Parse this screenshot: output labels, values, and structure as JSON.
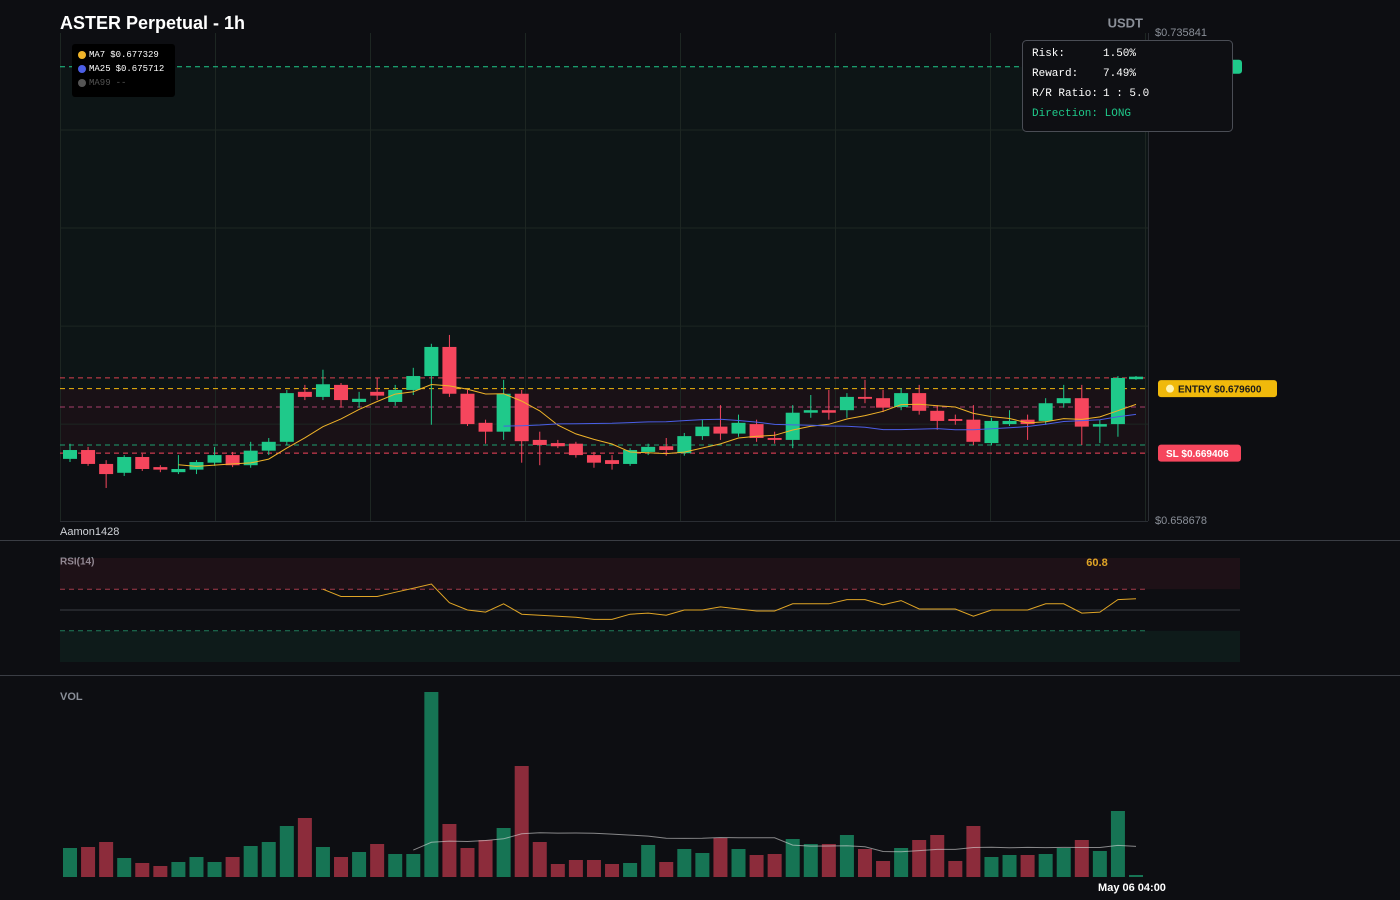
{
  "chart_data": {
    "type": "candlestick",
    "title": "ASTER Perpetual - 1h",
    "currency": "USDT",
    "watermark": "Aamon1428",
    "x": [
      null,
      null,
      null,
      null,
      null,
      null,
      null,
      null,
      null,
      null,
      null,
      null,
      null,
      null,
      null,
      null,
      null,
      null,
      null,
      null,
      null,
      null,
      null,
      null,
      null,
      null,
      null,
      null,
      null,
      null,
      null,
      null,
      null,
      null,
      null,
      null,
      null,
      null,
      null,
      null,
      null,
      null,
      null,
      null,
      null,
      null,
      null,
      null,
      null,
      null,
      null,
      null,
      null,
      null,
      null,
      null,
      null,
      null,
      null,
      "May 06 04:00"
    ],
    "open": [
      0.6685,
      0.6699,
      0.6677,
      0.6663,
      0.6688,
      0.6672,
      0.6664,
      0.6668,
      0.6679,
      0.6691,
      0.6675,
      0.6698,
      0.6712,
      0.6791,
      0.6783,
      0.6802,
      0.6775,
      0.6791,
      0.6775,
      0.6794,
      0.6816,
      0.6862,
      0.6788,
      0.6742,
      0.6728,
      0.6788,
      0.6715,
      0.671,
      0.6709,
      0.6691,
      0.6683,
      0.6677,
      0.6696,
      0.6705,
      0.6694,
      0.6721,
      0.6736,
      0.6725,
      0.674,
      0.6718,
      0.6715,
      0.6758,
      0.6762,
      0.6762,
      0.6783,
      0.6781,
      0.6767,
      0.6789,
      0.6761,
      0.6748,
      0.6747,
      0.671,
      0.674,
      0.6747,
      0.6745,
      0.6773,
      0.6781,
      0.6736,
      0.674,
      0.6811
    ],
    "high": [
      0.6709,
      0.6704,
      0.6683,
      0.6691,
      0.6693,
      0.6675,
      0.6691,
      0.6683,
      0.6704,
      0.6696,
      0.6712,
      0.6718,
      0.6794,
      0.6802,
      0.6826,
      0.6805,
      0.6791,
      0.6813,
      0.6802,
      0.6829,
      0.6867,
      0.6881,
      0.6794,
      0.6747,
      0.681,
      0.6794,
      0.6728,
      0.6715,
      0.6712,
      0.6696,
      0.6691,
      0.6702,
      0.6709,
      0.6718,
      0.6726,
      0.6747,
      0.677,
      0.6755,
      0.6747,
      0.6728,
      0.677,
      0.6786,
      0.6794,
      0.6789,
      0.681,
      0.6794,
      0.6797,
      0.6802,
      0.677,
      0.6755,
      0.677,
      0.675,
      0.6762,
      0.6755,
      0.6781,
      0.6802,
      0.6802,
      0.6747,
      0.6816,
      0.6816
    ],
    "low": [
      0.668,
      0.6674,
      0.6639,
      0.6658,
      0.6666,
      0.6664,
      0.6661,
      0.6661,
      0.6674,
      0.6672,
      0.6671,
      0.6691,
      0.6707,
      0.6778,
      0.6778,
      0.6766,
      0.6766,
      0.6778,
      0.6769,
      0.6786,
      0.6739,
      0.6783,
      0.6737,
      0.6709,
      0.6715,
      0.6679,
      0.6675,
      0.6702,
      0.6687,
      0.6671,
      0.6668,
      0.6674,
      0.6691,
      0.669,
      0.669,
      0.6715,
      0.6715,
      0.672,
      0.6712,
      0.6709,
      0.6702,
      0.675,
      0.6747,
      0.675,
      0.6773,
      0.6759,
      0.6762,
      0.6755,
      0.6731,
      0.6739,
      0.6707,
      0.6707,
      0.6737,
      0.6715,
      0.6739,
      0.6766,
      0.6707,
      0.671,
      0.672,
      0.681
    ],
    "close": [
      0.6699,
      0.6677,
      0.6661,
      0.6688,
      0.6669,
      0.6668,
      0.6669,
      0.668,
      0.6691,
      0.6675,
      0.6698,
      0.6712,
      0.6789,
      0.6783,
      0.6803,
      0.6778,
      0.678,
      0.6785,
      0.6794,
      0.6816,
      0.6862,
      0.6788,
      0.674,
      0.6728,
      0.6788,
      0.6713,
      0.6707,
      0.6705,
      0.6691,
      0.6679,
      0.6677,
      0.6699,
      0.6704,
      0.6699,
      0.6721,
      0.6736,
      0.6725,
      0.6742,
      0.6718,
      0.6715,
      0.6758,
      0.6762,
      0.6758,
      0.6783,
      0.678,
      0.6766,
      0.6789,
      0.6761,
      0.6745,
      0.6745,
      0.6712,
      0.6745,
      0.6745,
      0.674,
      0.6773,
      0.6781,
      0.6736,
      0.674,
      0.6813,
      0.6815
    ],
    "up_color": "#1fc98a",
    "down_color": "#f6465d",
    "ylim": [
      0.658678,
      0.735841
    ],
    "yticks": [
      {
        "value": 0.735841,
        "label": "$0.735841"
      },
      {
        "value": 0.658678,
        "label": "$0.658678"
      }
    ],
    "grid_y": [
      0.7205,
      0.705,
      0.6895,
      0.674
    ],
    "moving_averages": [
      {
        "name": "MA7",
        "period": 7,
        "color": "#f0b429",
        "value": 0.677329,
        "value_label": "$0.677329"
      },
      {
        "name": "MA25",
        "period": 25,
        "color": "#4b5ee6",
        "value": 0.675712,
        "value_label": "$0.675712"
      },
      {
        "name": "MA99",
        "period": 99,
        "color": "#555555",
        "value": null,
        "value_label": "--"
      }
    ],
    "levels": [
      {
        "label": "ENTRY $0.679600",
        "value": 0.6796,
        "color": "#f0b90b"
      },
      {
        "label": "SL $0.669406",
        "value": 0.669406,
        "color": "#f6465d"
      },
      {
        "value": 0.7305,
        "color": "#1fc98a"
      },
      {
        "value": 0.6813,
        "color": "#d9404f"
      },
      {
        "value": 0.6767,
        "color": "#a8406a"
      },
      {
        "value": 0.6707,
        "color": "#1f9e70"
      }
    ],
    "position": {
      "rows": [
        [
          "Risk:",
          "1.50%"
        ],
        [
          "Reward:",
          "7.49%"
        ],
        [
          "R/R Ratio:",
          "1 : 5.0"
        ]
      ],
      "direction": "Direction: LONG"
    },
    "rsi": {
      "label": "RSI(14)",
      "color": "#e0a526",
      "ylim": [
        0,
        100
      ],
      "levels": [
        30,
        50,
        70
      ],
      "values": [
        null,
        null,
        null,
        null,
        null,
        null,
        null,
        null,
        null,
        null,
        null,
        null,
        null,
        null,
        70,
        63,
        63,
        63,
        67,
        71,
        75,
        57,
        50,
        48,
        56,
        46,
        45,
        44,
        43,
        41,
        41,
        46,
        47,
        45,
        50,
        50,
        53,
        51,
        49,
        49,
        56,
        56,
        56,
        60,
        60,
        55,
        59,
        51,
        51,
        51,
        44,
        50,
        50,
        50,
        56,
        56,
        47,
        48,
        60,
        60.8
      ]
    },
    "volume": {
      "label": "VOL",
      "ma_period": 20,
      "values": [
        29,
        30,
        35,
        19,
        14,
        11,
        15,
        20,
        15,
        20,
        31,
        35,
        51,
        59,
        30,
        20,
        25,
        33,
        23,
        23,
        185,
        53,
        29,
        37,
        49,
        111,
        35,
        13,
        17,
        17,
        13,
        14,
        32,
        15,
        28,
        24,
        39,
        28,
        22,
        23,
        38,
        33,
        33,
        42,
        28,
        16,
        29,
        37,
        42,
        16,
        51,
        20,
        22,
        22,
        23,
        29,
        37,
        26,
        66,
        2
      ]
    }
  }
}
